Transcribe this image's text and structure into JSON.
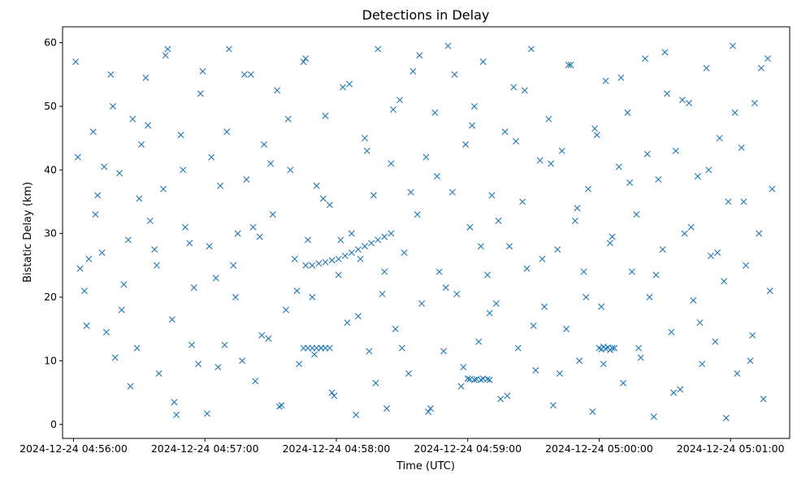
{
  "chart_data": {
    "type": "scatter",
    "title": "Detections in Delay",
    "xlabel": "Time (UTC)",
    "ylabel": "Bistatic Delay (km)",
    "marker": "x",
    "color": "#1f77b4",
    "grid": false,
    "legend": "none",
    "xlim": [
      "2024-12-24 04:55:55",
      "2024-12-24 05:01:27"
    ],
    "ylim": [
      -2.2,
      62.5
    ],
    "x_ticks": [
      "2024-12-24 04:56:00",
      "2024-12-24 04:57:00",
      "2024-12-24 04:58:00",
      "2024-12-24 04:59:00",
      "2024-12-24 05:00:00",
      "2024-12-24 05:01:00"
    ],
    "y_ticks": [
      0,
      10,
      20,
      30,
      40,
      50,
      60
    ],
    "series": [
      {
        "x": [
          "2024-12-24 04:56:01",
          "2024-12-24 04:56:03",
          "2024-12-24 04:56:05",
          "2024-12-24 04:56:07",
          "2024-12-24 04:56:09",
          "2024-12-24 04:56:11",
          "2024-12-24 04:56:13",
          "2024-12-24 04:56:15",
          "2024-12-24 04:56:17",
          "2024-12-24 04:56:19",
          "2024-12-24 04:56:21",
          "2024-12-24 04:56:23",
          "2024-12-24 04:56:25",
          "2024-12-24 04:56:27",
          "2024-12-24 04:56:29",
          "2024-12-24 04:56:31",
          "2024-12-24 04:56:33",
          "2024-12-24 04:56:35",
          "2024-12-24 04:56:37",
          "2024-12-24 04:56:39",
          "2024-12-24 04:56:41",
          "2024-12-24 04:56:43",
          "2024-12-24 04:56:45",
          "2024-12-24 04:56:47",
          "2024-12-24 04:56:49",
          "2024-12-24 04:56:51",
          "2024-12-24 04:56:53",
          "2024-12-24 04:56:55",
          "2024-12-24 04:56:57",
          "2024-12-24 04:56:59",
          "2024-12-24 04:57:01",
          "2024-12-24 04:57:03",
          "2024-12-24 04:57:05",
          "2024-12-24 04:57:07",
          "2024-12-24 04:57:09",
          "2024-12-24 04:57:11",
          "2024-12-24 04:57:13",
          "2024-12-24 04:57:15",
          "2024-12-24 04:57:17",
          "2024-12-24 04:57:19",
          "2024-12-24 04:57:21",
          "2024-12-24 04:57:23",
          "2024-12-24 04:57:25",
          "2024-12-24 04:57:27",
          "2024-12-24 04:57:29",
          "2024-12-24 04:57:31",
          "2024-12-24 04:57:33",
          "2024-12-24 04:57:35",
          "2024-12-24 04:57:37",
          "2024-12-24 04:57:39",
          "2024-12-24 04:57:41",
          "2024-12-24 04:57:43",
          "2024-12-24 04:57:45",
          "2024-12-24 04:57:47",
          "2024-12-24 04:57:49",
          "2024-12-24 04:57:51",
          "2024-12-24 04:57:53",
          "2024-12-24 04:57:55",
          "2024-12-24 04:57:57",
          "2024-12-24 04:57:59",
          "2024-12-24 04:58:01",
          "2024-12-24 04:58:03",
          "2024-12-24 04:58:05",
          "2024-12-24 04:58:07",
          "2024-12-24 04:58:09",
          "2024-12-24 04:58:11",
          "2024-12-24 04:58:13",
          "2024-12-24 04:58:15",
          "2024-12-24 04:58:17",
          "2024-12-24 04:58:19",
          "2024-12-24 04:58:21",
          "2024-12-24 04:58:23",
          "2024-12-24 04:58:25",
          "2024-12-24 04:58:27",
          "2024-12-24 04:58:29",
          "2024-12-24 04:58:31",
          "2024-12-24 04:58:33",
          "2024-12-24 04:58:35",
          "2024-12-24 04:58:37",
          "2024-12-24 04:58:39",
          "2024-12-24 04:58:41",
          "2024-12-24 04:58:43",
          "2024-12-24 04:58:45",
          "2024-12-24 04:58:47",
          "2024-12-24 04:58:49",
          "2024-12-24 04:58:51",
          "2024-12-24 04:58:53",
          "2024-12-24 04:58:55",
          "2024-12-24 04:58:57",
          "2024-12-24 04:58:59",
          "2024-12-24 04:59:01",
          "2024-12-24 04:59:03",
          "2024-12-24 04:59:05",
          "2024-12-24 04:59:07",
          "2024-12-24 04:59:09",
          "2024-12-24 04:59:11",
          "2024-12-24 04:59:13",
          "2024-12-24 04:59:15",
          "2024-12-24 04:59:17",
          "2024-12-24 04:59:19",
          "2024-12-24 04:59:21",
          "2024-12-24 04:59:23",
          "2024-12-24 04:59:25",
          "2024-12-24 04:59:27",
          "2024-12-24 04:59:29",
          "2024-12-24 04:59:31",
          "2024-12-24 04:59:33",
          "2024-12-24 04:59:35",
          "2024-12-24 04:59:37",
          "2024-12-24 04:59:39",
          "2024-12-24 04:59:41",
          "2024-12-24 04:59:43",
          "2024-12-24 04:59:45",
          "2024-12-24 04:59:47",
          "2024-12-24 04:59:49",
          "2024-12-24 04:59:51",
          "2024-12-24 04:59:53",
          "2024-12-24 04:59:55",
          "2024-12-24 04:59:57",
          "2024-12-24 04:59:59",
          "2024-12-24 05:00:01",
          "2024-12-24 05:00:03",
          "2024-12-24 05:00:05",
          "2024-12-24 05:00:07",
          "2024-12-24 05:00:09",
          "2024-12-24 05:00:11",
          "2024-12-24 05:00:13",
          "2024-12-24 05:00:15",
          "2024-12-24 05:00:17",
          "2024-12-24 05:00:19",
          "2024-12-24 05:00:21",
          "2024-12-24 05:00:23",
          "2024-12-24 05:00:25",
          "2024-12-24 05:00:27",
          "2024-12-24 05:00:29",
          "2024-12-24 05:00:31",
          "2024-12-24 05:00:33",
          "2024-12-24 05:00:35",
          "2024-12-24 05:00:37",
          "2024-12-24 05:00:39",
          "2024-12-24 05:00:41",
          "2024-12-24 05:00:43",
          "2024-12-24 05:00:45",
          "2024-12-24 05:00:47",
          "2024-12-24 05:00:49",
          "2024-12-24 05:00:51",
          "2024-12-24 05:00:53",
          "2024-12-24 05:00:55",
          "2024-12-24 05:00:57",
          "2024-12-24 05:00:59",
          "2024-12-24 05:01:01",
          "2024-12-24 05:01:03",
          "2024-12-24 05:01:05",
          "2024-12-24 05:01:07",
          "2024-12-24 05:01:09",
          "2024-12-24 05:01:11",
          "2024-12-24 05:01:13",
          "2024-12-24 05:01:15",
          "2024-12-24 05:01:17",
          "2024-12-24 05:01:19",
          "2024-12-24 04:56:02",
          "2024-12-24 04:56:06",
          "2024-12-24 04:56:10",
          "2024-12-24 04:56:14",
          "2024-12-24 04:56:18",
          "2024-12-24 04:56:22",
          "2024-12-24 04:56:26",
          "2024-12-24 04:56:30",
          "2024-12-24 04:56:34",
          "2024-12-24 04:56:38",
          "2024-12-24 04:56:42",
          "2024-12-24 04:56:46",
          "2024-12-24 04:56:50",
          "2024-12-24 04:56:54",
          "2024-12-24 04:56:58",
          "2024-12-24 04:57:02",
          "2024-12-24 04:57:06",
          "2024-12-24 04:57:10",
          "2024-12-24 04:57:14",
          "2024-12-24 04:57:18",
          "2024-12-24 04:57:22",
          "2024-12-24 04:57:26",
          "2024-12-24 04:57:30",
          "2024-12-24 04:57:34",
          "2024-12-24 04:57:38",
          "2024-12-24 04:57:42",
          "2024-12-24 04:57:46",
          "2024-12-24 04:57:50",
          "2024-12-24 04:57:54",
          "2024-12-24 04:57:58",
          "2024-12-24 04:58:02",
          "2024-12-24 04:58:06",
          "2024-12-24 04:58:10",
          "2024-12-24 04:58:14",
          "2024-12-24 04:58:18",
          "2024-12-24 04:58:22",
          "2024-12-24 04:58:26",
          "2024-12-24 04:58:30",
          "2024-12-24 04:58:34",
          "2024-12-24 04:58:38",
          "2024-12-24 04:58:42",
          "2024-12-24 04:58:46",
          "2024-12-24 04:58:50",
          "2024-12-24 04:58:54",
          "2024-12-24 04:58:58",
          "2024-12-24 04:59:02",
          "2024-12-24 04:59:06",
          "2024-12-24 04:59:10",
          "2024-12-24 04:59:14",
          "2024-12-24 04:59:18",
          "2024-12-24 04:59:22",
          "2024-12-24 04:59:26",
          "2024-12-24 04:59:30",
          "2024-12-24 04:59:34",
          "2024-12-24 04:59:38",
          "2024-12-24 04:59:42",
          "2024-12-24 04:59:46",
          "2024-12-24 04:59:50",
          "2024-12-24 04:59:54",
          "2024-12-24 04:59:58",
          "2024-12-24 05:00:02",
          "2024-12-24 05:00:06",
          "2024-12-24 05:00:10",
          "2024-12-24 05:00:14",
          "2024-12-24 05:00:18",
          "2024-12-24 05:00:22",
          "2024-12-24 05:00:26",
          "2024-12-24 05:00:30",
          "2024-12-24 05:00:34",
          "2024-12-24 05:00:38",
          "2024-12-24 05:00:42",
          "2024-12-24 05:00:46",
          "2024-12-24 05:00:50",
          "2024-12-24 05:00:54",
          "2024-12-24 05:00:58",
          "2024-12-24 05:01:02",
          "2024-12-24 05:01:06",
          "2024-12-24 05:01:10",
          "2024-12-24 05:01:14",
          "2024-12-24 05:01:18",
          "2024-12-24 04:57:46",
          "2024-12-24 04:57:49",
          "2024-12-24 04:57:52",
          "2024-12-24 04:57:55",
          "2024-12-24 04:57:58",
          "2024-12-24 04:58:01",
          "2024-12-24 04:58:04",
          "2024-12-24 04:58:07",
          "2024-12-24 04:58:10",
          "2024-12-24 04:58:13",
          "2024-12-24 04:58:16",
          "2024-12-24 04:58:19",
          "2024-12-24 04:58:22",
          "2024-12-24 04:58:25",
          "2024-12-24 04:57:45",
          "2024-12-24 04:57:47",
          "2024-12-24 04:57:49",
          "2024-12-24 04:57:51",
          "2024-12-24 04:57:53",
          "2024-12-24 04:57:55",
          "2024-12-24 04:57:57",
          "2024-12-24 04:59:00",
          "2024-12-24 04:59:01",
          "2024-12-24 04:59:03",
          "2024-12-24 04:59:04",
          "2024-12-24 04:59:06",
          "2024-12-24 04:59:07",
          "2024-12-24 04:59:09",
          "2024-12-24 04:59:10",
          "2024-12-24 05:00:00",
          "2024-12-24 05:00:01",
          "2024-12-24 05:00:02",
          "2024-12-24 05:00:03",
          "2024-12-24 05:00:04",
          "2024-12-24 05:00:05",
          "2024-12-24 05:00:06"
        ],
        "y": [
          57.0,
          24.5,
          21.0,
          26.0,
          46.0,
          36.0,
          27.0,
          14.5,
          55.0,
          10.5,
          39.5,
          22.0,
          29.0,
          48.0,
          12.0,
          44.0,
          54.5,
          32.0,
          27.5,
          8.0,
          37.0,
          59.0,
          16.5,
          1.5,
          45.5,
          31.0,
          28.5,
          21.5,
          9.5,
          55.5,
          1.7,
          42.0,
          23.0,
          37.5,
          12.5,
          59.0,
          25.0,
          30.0,
          10.0,
          38.5,
          55.0,
          6.8,
          29.5,
          44.0,
          13.5,
          33.0,
          52.5,
          3.0,
          18.0,
          40.0,
          26.0,
          9.5,
          57.0,
          29.0,
          20.0,
          37.5,
          12.0,
          48.5,
          34.5,
          4.5,
          23.5,
          53.0,
          16.0,
          30.0,
          1.5,
          26.0,
          45.0,
          11.5,
          36.0,
          59.0,
          20.5,
          2.5,
          41.0,
          15.0,
          51.0,
          27.0,
          8.0,
          55.5,
          33.0,
          19.0,
          42.0,
          2.5,
          49.0,
          24.0,
          11.5,
          59.5,
          36.5,
          20.5,
          6.0,
          44.0,
          31.0,
          50.0,
          13.0,
          57.0,
          23.5,
          36.0,
          19.0,
          4.0,
          46.0,
          28.0,
          53.0,
          12.0,
          35.0,
          24.5,
          59.0,
          8.5,
          41.5,
          18.5,
          48.0,
          3.0,
          27.5,
          43.0,
          15.0,
          56.5,
          32.0,
          10.0,
          24.0,
          37.0,
          2.0,
          45.5,
          18.5,
          54.0,
          28.5,
          12.0,
          40.5,
          6.5,
          49.0,
          24.0,
          33.0,
          10.5,
          57.5,
          20.0,
          1.2,
          38.5,
          27.5,
          52.0,
          14.5,
          43.0,
          5.5,
          30.0,
          50.5,
          19.5,
          39.0,
          9.5,
          56.0,
          26.5,
          13.0,
          45.0,
          22.5,
          35.0,
          59.5,
          8.0,
          43.5,
          25.0,
          10.0,
          50.5,
          30.0,
          4.0,
          57.5,
          37.0,
          42.0,
          15.5,
          33.0,
          40.5,
          50.0,
          18.0,
          6.0,
          35.5,
          47.0,
          25.0,
          58.0,
          3.5,
          40.0,
          12.5,
          52.0,
          28.0,
          9.0,
          46.0,
          20.0,
          55.0,
          31.0,
          14.0,
          41.0,
          2.8,
          48.0,
          21.0,
          57.5,
          11.0,
          35.5,
          5.0,
          29.0,
          53.5,
          17.0,
          43.0,
          6.5,
          24.0,
          49.5,
          12.0,
          36.5,
          58.0,
          2.0,
          39.0,
          21.5,
          55.0,
          9.0,
          47.0,
          28.0,
          17.5,
          32.0,
          4.5,
          44.5,
          52.5,
          15.5,
          26.0,
          41.0,
          8.0,
          56.5,
          34.0,
          20.0,
          46.5,
          9.5,
          29.5,
          54.5,
          38.0,
          12.0,
          42.5,
          23.5,
          58.5,
          5.0,
          51.0,
          31.0,
          16.0,
          40.0,
          27.0,
          1.0,
          49.0,
          35.0,
          14.0,
          56.0,
          21.0,
          25.0,
          25.0,
          25.3,
          25.5,
          25.8,
          26.0,
          26.5,
          27.0,
          27.5,
          28.0,
          28.5,
          29.0,
          29.5,
          30.0,
          12.0,
          12.0,
          12.0,
          12.0,
          12.0,
          12.0,
          12.0,
          7.2,
          7.1,
          7.0,
          7.1,
          7.0,
          7.2,
          7.1,
          7.0,
          12.0,
          11.8,
          12.2,
          11.9,
          12.1,
          11.7,
          12.0
        ]
      }
    ]
  }
}
